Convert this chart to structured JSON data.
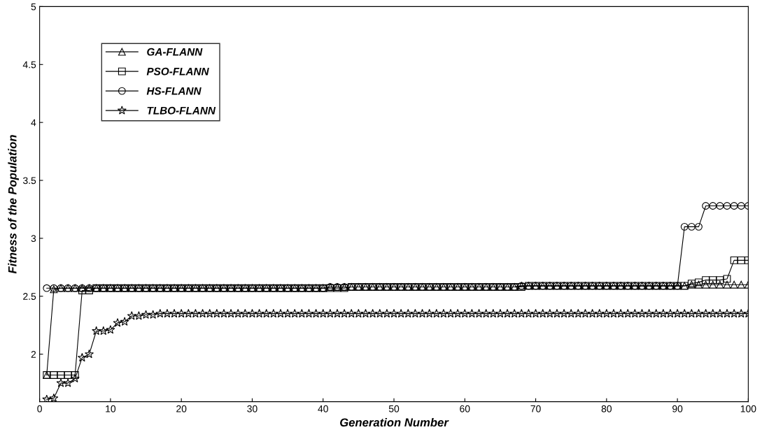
{
  "chart_data": {
    "type": "line",
    "xlabel": "Generation Number",
    "ylabel": "Fitness of the Population",
    "xlim": [
      0,
      100
    ],
    "xticks": [
      0,
      10,
      20,
      30,
      40,
      50,
      60,
      70,
      80,
      90,
      100
    ],
    "ylim": [
      1.59,
      5
    ],
    "yticks": [
      2,
      2.5,
      3,
      3.5,
      4,
      4.5,
      5
    ],
    "grid": false,
    "legend": "top left",
    "line_style": "solid",
    "x": [
      1,
      2,
      3,
      4,
      5,
      6,
      7,
      8,
      9,
      10,
      11,
      12,
      13,
      14,
      15,
      16,
      17,
      18,
      19,
      20,
      21,
      22,
      23,
      24,
      25,
      26,
      27,
      28,
      29,
      30,
      31,
      32,
      33,
      34,
      35,
      36,
      37,
      38,
      39,
      40,
      41,
      42,
      43,
      44,
      45,
      46,
      47,
      48,
      49,
      50,
      51,
      52,
      53,
      54,
      55,
      56,
      57,
      58,
      59,
      60,
      61,
      62,
      63,
      64,
      65,
      66,
      67,
      68,
      69,
      70,
      71,
      72,
      73,
      74,
      75,
      76,
      77,
      78,
      79,
      80,
      81,
      82,
      83,
      84,
      85,
      86,
      87,
      88,
      89,
      90,
      91,
      92,
      93,
      94,
      95,
      96,
      97,
      98,
      99,
      100
    ],
    "series": [
      {
        "name": "GA-FLANN",
        "color": "#000000",
        "marker": "triangle",
        "values": [
          1.82,
          2.56,
          2.57,
          2.57,
          2.57,
          2.57,
          2.57,
          2.57,
          2.57,
          2.57,
          2.57,
          2.57,
          2.57,
          2.57,
          2.57,
          2.57,
          2.57,
          2.57,
          2.57,
          2.57,
          2.57,
          2.57,
          2.57,
          2.57,
          2.57,
          2.57,
          2.57,
          2.57,
          2.57,
          2.57,
          2.57,
          2.57,
          2.57,
          2.57,
          2.57,
          2.57,
          2.57,
          2.57,
          2.57,
          2.57,
          2.58,
          2.58,
          2.58,
          2.58,
          2.58,
          2.58,
          2.58,
          2.58,
          2.58,
          2.58,
          2.58,
          2.58,
          2.58,
          2.58,
          2.58,
          2.58,
          2.58,
          2.58,
          2.58,
          2.58,
          2.58,
          2.58,
          2.58,
          2.58,
          2.58,
          2.58,
          2.58,
          2.59,
          2.59,
          2.59,
          2.59,
          2.59,
          2.59,
          2.59,
          2.59,
          2.59,
          2.59,
          2.59,
          2.59,
          2.59,
          2.59,
          2.59,
          2.59,
          2.59,
          2.59,
          2.59,
          2.59,
          2.59,
          2.59,
          2.59,
          2.59,
          2.6,
          2.6,
          2.6,
          2.6,
          2.6,
          2.6,
          2.6,
          2.6,
          2.6
        ]
      },
      {
        "name": "PSO-FLANN",
        "color": "#000000",
        "marker": "square",
        "values": [
          1.82,
          1.82,
          1.82,
          1.82,
          1.82,
          2.55,
          2.55,
          2.57,
          2.57,
          2.57,
          2.57,
          2.57,
          2.57,
          2.57,
          2.57,
          2.57,
          2.57,
          2.57,
          2.57,
          2.57,
          2.57,
          2.57,
          2.57,
          2.57,
          2.57,
          2.57,
          2.57,
          2.57,
          2.57,
          2.57,
          2.57,
          2.57,
          2.57,
          2.57,
          2.57,
          2.57,
          2.57,
          2.57,
          2.57,
          2.57,
          2.57,
          2.57,
          2.57,
          2.58,
          2.58,
          2.58,
          2.58,
          2.58,
          2.58,
          2.58,
          2.58,
          2.58,
          2.58,
          2.58,
          2.58,
          2.58,
          2.58,
          2.58,
          2.58,
          2.58,
          2.58,
          2.58,
          2.58,
          2.58,
          2.58,
          2.58,
          2.58,
          2.58,
          2.59,
          2.59,
          2.59,
          2.59,
          2.59,
          2.59,
          2.59,
          2.59,
          2.59,
          2.59,
          2.59,
          2.59,
          2.59,
          2.59,
          2.59,
          2.59,
          2.59,
          2.59,
          2.59,
          2.59,
          2.59,
          2.59,
          2.59,
          2.61,
          2.62,
          2.64,
          2.64,
          2.64,
          2.65,
          2.81,
          2.81,
          2.81
        ]
      },
      {
        "name": "HS-FLANN",
        "color": "#000000",
        "marker": "circle",
        "values": [
          2.57,
          2.57,
          2.57,
          2.57,
          2.57,
          2.57,
          2.57,
          2.57,
          2.57,
          2.57,
          2.57,
          2.57,
          2.57,
          2.57,
          2.57,
          2.57,
          2.57,
          2.57,
          2.57,
          2.57,
          2.57,
          2.57,
          2.57,
          2.57,
          2.57,
          2.57,
          2.57,
          2.57,
          2.57,
          2.57,
          2.57,
          2.57,
          2.57,
          2.57,
          2.57,
          2.57,
          2.57,
          2.57,
          2.57,
          2.57,
          2.58,
          2.58,
          2.58,
          2.58,
          2.58,
          2.58,
          2.58,
          2.58,
          2.58,
          2.58,
          2.58,
          2.58,
          2.58,
          2.58,
          2.58,
          2.58,
          2.58,
          2.58,
          2.58,
          2.58,
          2.58,
          2.58,
          2.58,
          2.58,
          2.58,
          2.58,
          2.58,
          2.59,
          2.59,
          2.59,
          2.59,
          2.59,
          2.59,
          2.59,
          2.59,
          2.59,
          2.59,
          2.59,
          2.59,
          2.59,
          2.59,
          2.59,
          2.59,
          2.59,
          2.59,
          2.59,
          2.59,
          2.59,
          2.59,
          2.59,
          3.1,
          3.1,
          3.1,
          3.28,
          3.28,
          3.28,
          3.28,
          3.28,
          3.28,
          3.28
        ]
      },
      {
        "name": "TLBO-FLANN",
        "color": "#000000",
        "marker": "star",
        "values": [
          1.61,
          1.62,
          1.75,
          1.75,
          1.79,
          1.97,
          2.0,
          2.2,
          2.2,
          2.21,
          2.27,
          2.28,
          2.33,
          2.33,
          2.34,
          2.34,
          2.35,
          2.35,
          2.35,
          2.35,
          2.35,
          2.35,
          2.35,
          2.35,
          2.35,
          2.35,
          2.35,
          2.35,
          2.35,
          2.35,
          2.35,
          2.35,
          2.35,
          2.35,
          2.35,
          2.35,
          2.35,
          2.35,
          2.35,
          2.35,
          2.35,
          2.35,
          2.35,
          2.35,
          2.35,
          2.35,
          2.35,
          2.35,
          2.35,
          2.35,
          2.35,
          2.35,
          2.35,
          2.35,
          2.35,
          2.35,
          2.35,
          2.35,
          2.35,
          2.35,
          2.35,
          2.35,
          2.35,
          2.35,
          2.35,
          2.35,
          2.35,
          2.35,
          2.35,
          2.35,
          2.35,
          2.35,
          2.35,
          2.35,
          2.35,
          2.35,
          2.35,
          2.35,
          2.35,
          2.35,
          2.35,
          2.35,
          2.35,
          2.35,
          2.35,
          2.35,
          2.35,
          2.35,
          2.35,
          2.35,
          2.35,
          2.35,
          2.35,
          2.35,
          2.35,
          2.35,
          2.35,
          2.35,
          2.35,
          2.35
        ]
      }
    ]
  }
}
